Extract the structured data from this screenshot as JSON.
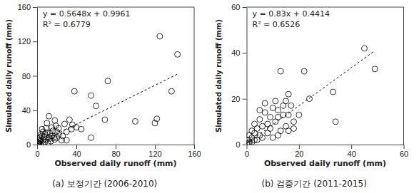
{
  "chart_data": [
    {
      "type": "scatter",
      "title": "(a) 보정기간 (2006-2010)",
      "xlabel": "Observed daily runoff (mm)",
      "ylabel": "Simulated daily runoff (mm)",
      "annotations": [
        "y = 0.5648x + 0.9961",
        "R² = 0.6779"
      ],
      "xlim": [
        0,
        160
      ],
      "ylim": [
        0,
        160
      ],
      "xticks": [
        0,
        40,
        80,
        120,
        160
      ],
      "yticks": [
        0,
        40,
        80,
        120,
        160
      ],
      "series": [
        {
          "type": "scatter",
          "marker": "circle",
          "color": "#000000",
          "x": [
            143,
            125,
            137,
            120,
            122,
            100,
            72,
            69,
            60,
            55,
            55,
            38,
            36,
            33,
            30,
            30,
            26,
            22,
            20,
            18,
            15,
            12,
            12,
            10,
            8,
            6,
            5,
            4,
            3,
            2,
            1,
            0.5,
            15,
            17,
            13,
            10,
            9,
            7,
            20,
            22,
            25,
            28,
            35,
            40,
            45,
            5,
            3,
            2,
            1,
            0.3,
            8,
            11,
            14,
            16,
            18,
            19,
            6,
            4,
            2,
            7,
            9,
            13
          ],
          "values": [
            105,
            126,
            62,
            25,
            30,
            27,
            74,
            29,
            45,
            57,
            8,
            62,
            23,
            29,
            15,
            5,
            10,
            19,
            15,
            28,
            20,
            33,
            9,
            25,
            12,
            5,
            18,
            2,
            8,
            1,
            0.5,
            3,
            10,
            8,
            13,
            14,
            6,
            9,
            8,
            12,
            5,
            24,
            18,
            20,
            18,
            10,
            4,
            5,
            2,
            1,
            3,
            2,
            4,
            16,
            6,
            22,
            15,
            12,
            8,
            1,
            19,
            7
          ]
        },
        {
          "type": "line",
          "line_style": "dashed",
          "color": "#000000",
          "x": [
            0,
            143
          ],
          "values": [
            1,
            82
          ]
        }
      ]
    },
    {
      "type": "scatter",
      "title": "(b) 검증기간 (2011-2015)",
      "xlabel": "Observed daily runoff (mm)",
      "ylabel": "Simulated daily runoff (mm)",
      "annotations": [
        "y = 0.83x + 0.4414",
        "R² = 0.6526"
      ],
      "xlim": [
        0,
        60
      ],
      "ylim": [
        0,
        60
      ],
      "xticks": [
        0,
        20,
        40,
        60
      ],
      "yticks": [
        0,
        20,
        40,
        60
      ],
      "series": [
        {
          "type": "scatter",
          "marker": "circle",
          "color": "#000000",
          "x": [
            45,
            49,
            34,
            33,
            24,
            22,
            13,
            16,
            15,
            17,
            18,
            14,
            13,
            12,
            10,
            11,
            9,
            8,
            7,
            6,
            5,
            4,
            3,
            2,
            1,
            0.5,
            10,
            12,
            15,
            16,
            8,
            6,
            4,
            3,
            2,
            1,
            0.3,
            7,
            11,
            20,
            18,
            14,
            9,
            5,
            5,
            12,
            16,
            2,
            3,
            1
          ],
          "values": [
            42,
            33,
            10,
            23,
            20,
            32,
            32,
            22,
            19,
            17,
            7,
            13,
            6,
            15,
            16,
            10,
            12,
            9,
            14,
            8,
            11,
            7,
            5,
            3,
            1,
            2,
            3,
            4,
            8,
            13,
            5,
            3,
            2,
            9,
            6,
            4,
            0.5,
            18,
            19,
            13,
            10,
            17,
            7,
            4,
            15,
            12,
            6,
            1,
            2,
            0.3
          ]
        },
        {
          "type": "line",
          "line_style": "dashed",
          "color": "#000000",
          "x": [
            0,
            49
          ],
          "values": [
            0.4,
            41
          ]
        }
      ]
    }
  ]
}
